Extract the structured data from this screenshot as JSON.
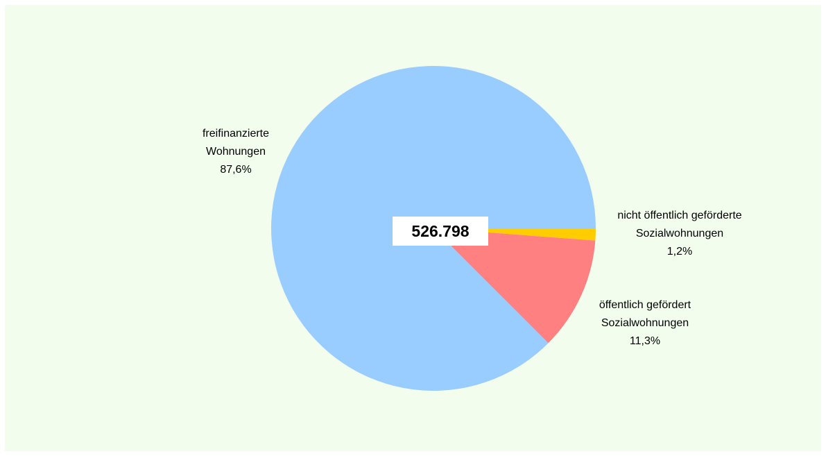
{
  "chart_data": {
    "type": "pie",
    "total_label": "526.798",
    "slices": [
      {
        "name_lines": [
          "nicht öffentlich geförderte",
          "Sozialwohnungen"
        ],
        "value_label": "1,2%",
        "value": 1.2,
        "color": "#ffcc00"
      },
      {
        "name_lines": [
          "öffentlich gefördert",
          "Sozialwohnungen"
        ],
        "value_label": "11,3%",
        "value": 11.3,
        "color": "#ff8080"
      },
      {
        "name_lines": [
          "freifinanzierte",
          "Wohnungen"
        ],
        "value_label": "87,6%",
        "value": 87.6,
        "color": "#99ccff"
      }
    ],
    "start_direction": "3 o'clock",
    "order": "clockwise",
    "legend": "none",
    "background_color": "#f2fdee"
  }
}
